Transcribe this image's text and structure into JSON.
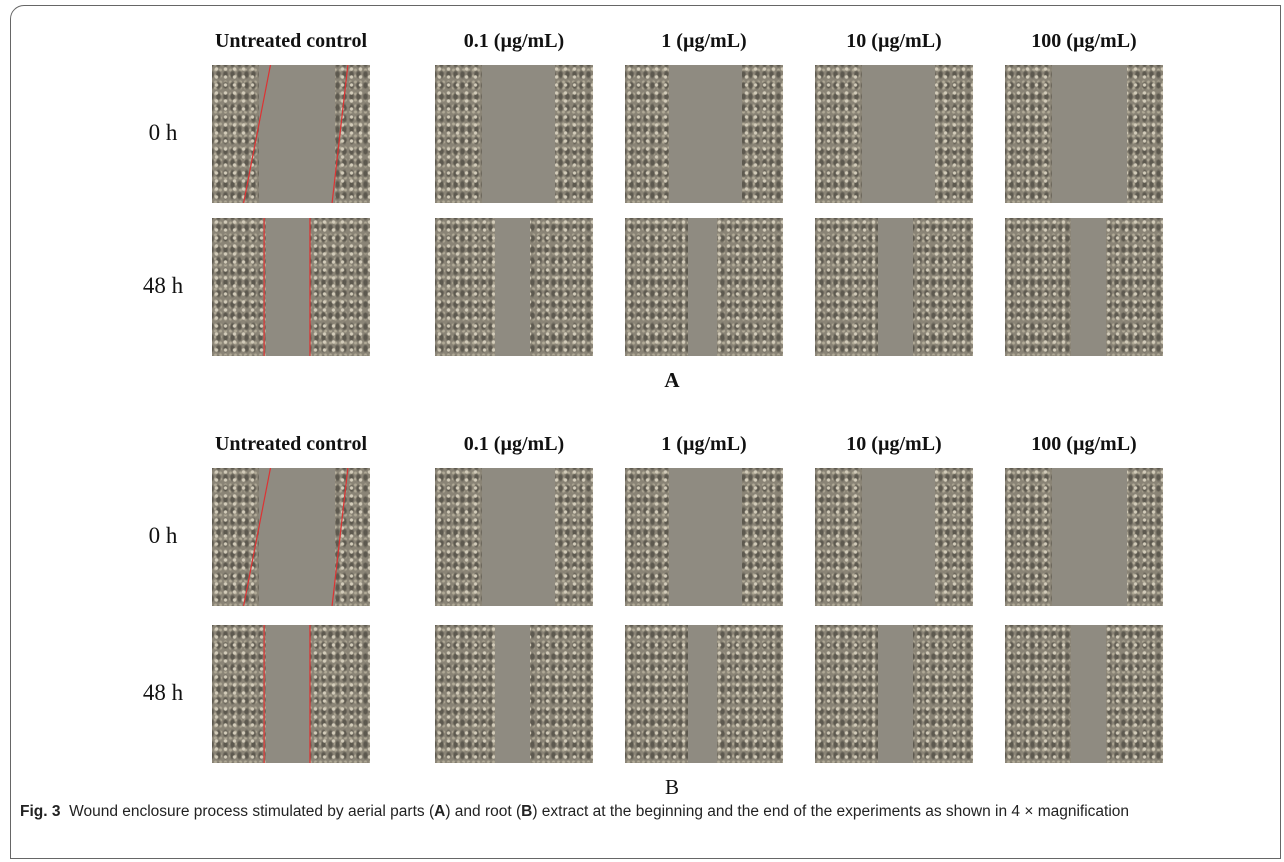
{
  "panels": [
    {
      "label": "A",
      "columns": [
        "Untreated control",
        "0.1 (µg/mL)",
        "1 (µg/mL)",
        "10 (µg/mL)",
        "100 (µg/mL)"
      ],
      "rows": [
        "0 h",
        "48 h"
      ]
    },
    {
      "label": "B",
      "columns": [
        "Untreated control",
        "0.1 (µg/mL)",
        "1 (µg/mL)",
        "10 (µg/mL)",
        "100 (µg/mL)"
      ],
      "rows": [
        "0 h",
        "48 h"
      ]
    }
  ],
  "caption": {
    "label": "Fig. 3",
    "parts": [
      "Wound enclosure process stimulated by aerial parts (",
      "A",
      ") and root (",
      "B",
      ") extract at the beginning and the end of the experiments as shown in 4 × magnification"
    ]
  }
}
